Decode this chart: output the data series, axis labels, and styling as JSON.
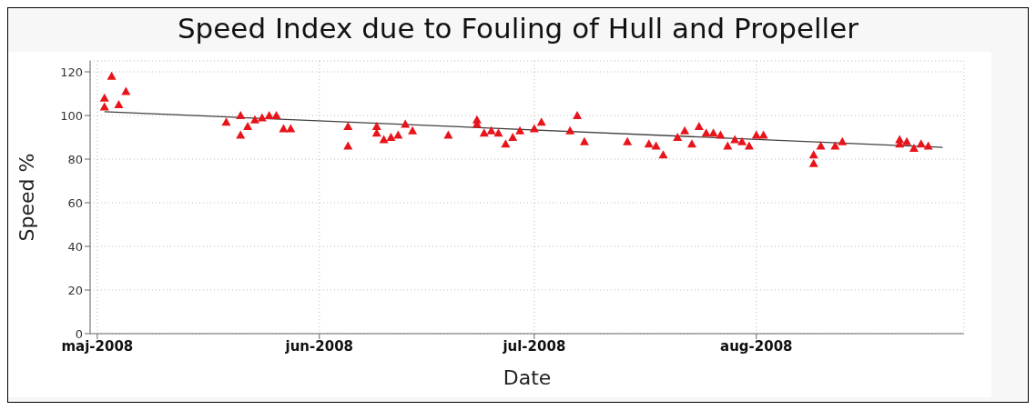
{
  "chart_data": {
    "type": "scatter",
    "title": "Speed Index due to Fouling of Hull and Propeller",
    "xlabel": "Date",
    "ylabel": "Speed %",
    "xlim": [
      "2008-04-30",
      "2008-08-30"
    ],
    "xticks": [
      {
        "value": "2008-05-01",
        "label": "maj-2008"
      },
      {
        "value": "2008-06-01",
        "label": "jun-2008"
      },
      {
        "value": "2008-07-01",
        "label": "jul-2008"
      },
      {
        "value": "2008-08-01",
        "label": "aug-2008"
      }
    ],
    "ylim": [
      0,
      125
    ],
    "yticks": [
      0,
      20,
      40,
      60,
      80,
      100,
      120
    ],
    "grid": true,
    "series": [
      {
        "marker": "triangle",
        "color": "#e8141b",
        "x": [
          "2008-05-02",
          "2008-05-02",
          "2008-05-03",
          "2008-05-04",
          "2008-05-05",
          "2008-05-19",
          "2008-05-21",
          "2008-05-21",
          "2008-05-22",
          "2008-05-23",
          "2008-05-24",
          "2008-05-25",
          "2008-05-26",
          "2008-05-27",
          "2008-05-28",
          "2008-06-05",
          "2008-06-05",
          "2008-06-09",
          "2008-06-09",
          "2008-06-10",
          "2008-06-11",
          "2008-06-12",
          "2008-06-13",
          "2008-06-14",
          "2008-06-19",
          "2008-06-23",
          "2008-06-23",
          "2008-06-24",
          "2008-06-25",
          "2008-06-26",
          "2008-06-27",
          "2008-06-28",
          "2008-06-29",
          "2008-07-01",
          "2008-07-02",
          "2008-07-06",
          "2008-07-07",
          "2008-07-08",
          "2008-07-14",
          "2008-07-17",
          "2008-07-18",
          "2008-07-19",
          "2008-07-21",
          "2008-07-22",
          "2008-07-23",
          "2008-07-24",
          "2008-07-25",
          "2008-07-26",
          "2008-07-27",
          "2008-07-28",
          "2008-07-29",
          "2008-07-30",
          "2008-07-31",
          "2008-08-01",
          "2008-08-02",
          "2008-08-09",
          "2008-08-09",
          "2008-08-10",
          "2008-08-12",
          "2008-08-13",
          "2008-08-21",
          "2008-08-21",
          "2008-08-22",
          "2008-08-23",
          "2008-08-24",
          "2008-08-25"
        ],
        "values": [
          104,
          108,
          118,
          105,
          111,
          97,
          91,
          100,
          95,
          98,
          99,
          100,
          100,
          94,
          94,
          95,
          86,
          95,
          92,
          89,
          90,
          91,
          96,
          93,
          91,
          98,
          96,
          92,
          93,
          92,
          87,
          90,
          93,
          94,
          97,
          93,
          100,
          88,
          88,
          87,
          86,
          82,
          90,
          93,
          87,
          95,
          92,
          92,
          91,
          86,
          89,
          88,
          86,
          91,
          91,
          82,
          78,
          86,
          86,
          88,
          87,
          89,
          88,
          85,
          87,
          86
        ]
      },
      {
        "type": "line",
        "color": "#404040",
        "x": [
          "2008-05-02",
          "2008-08-27"
        ],
        "values": [
          101.7,
          85.4
        ]
      }
    ]
  }
}
